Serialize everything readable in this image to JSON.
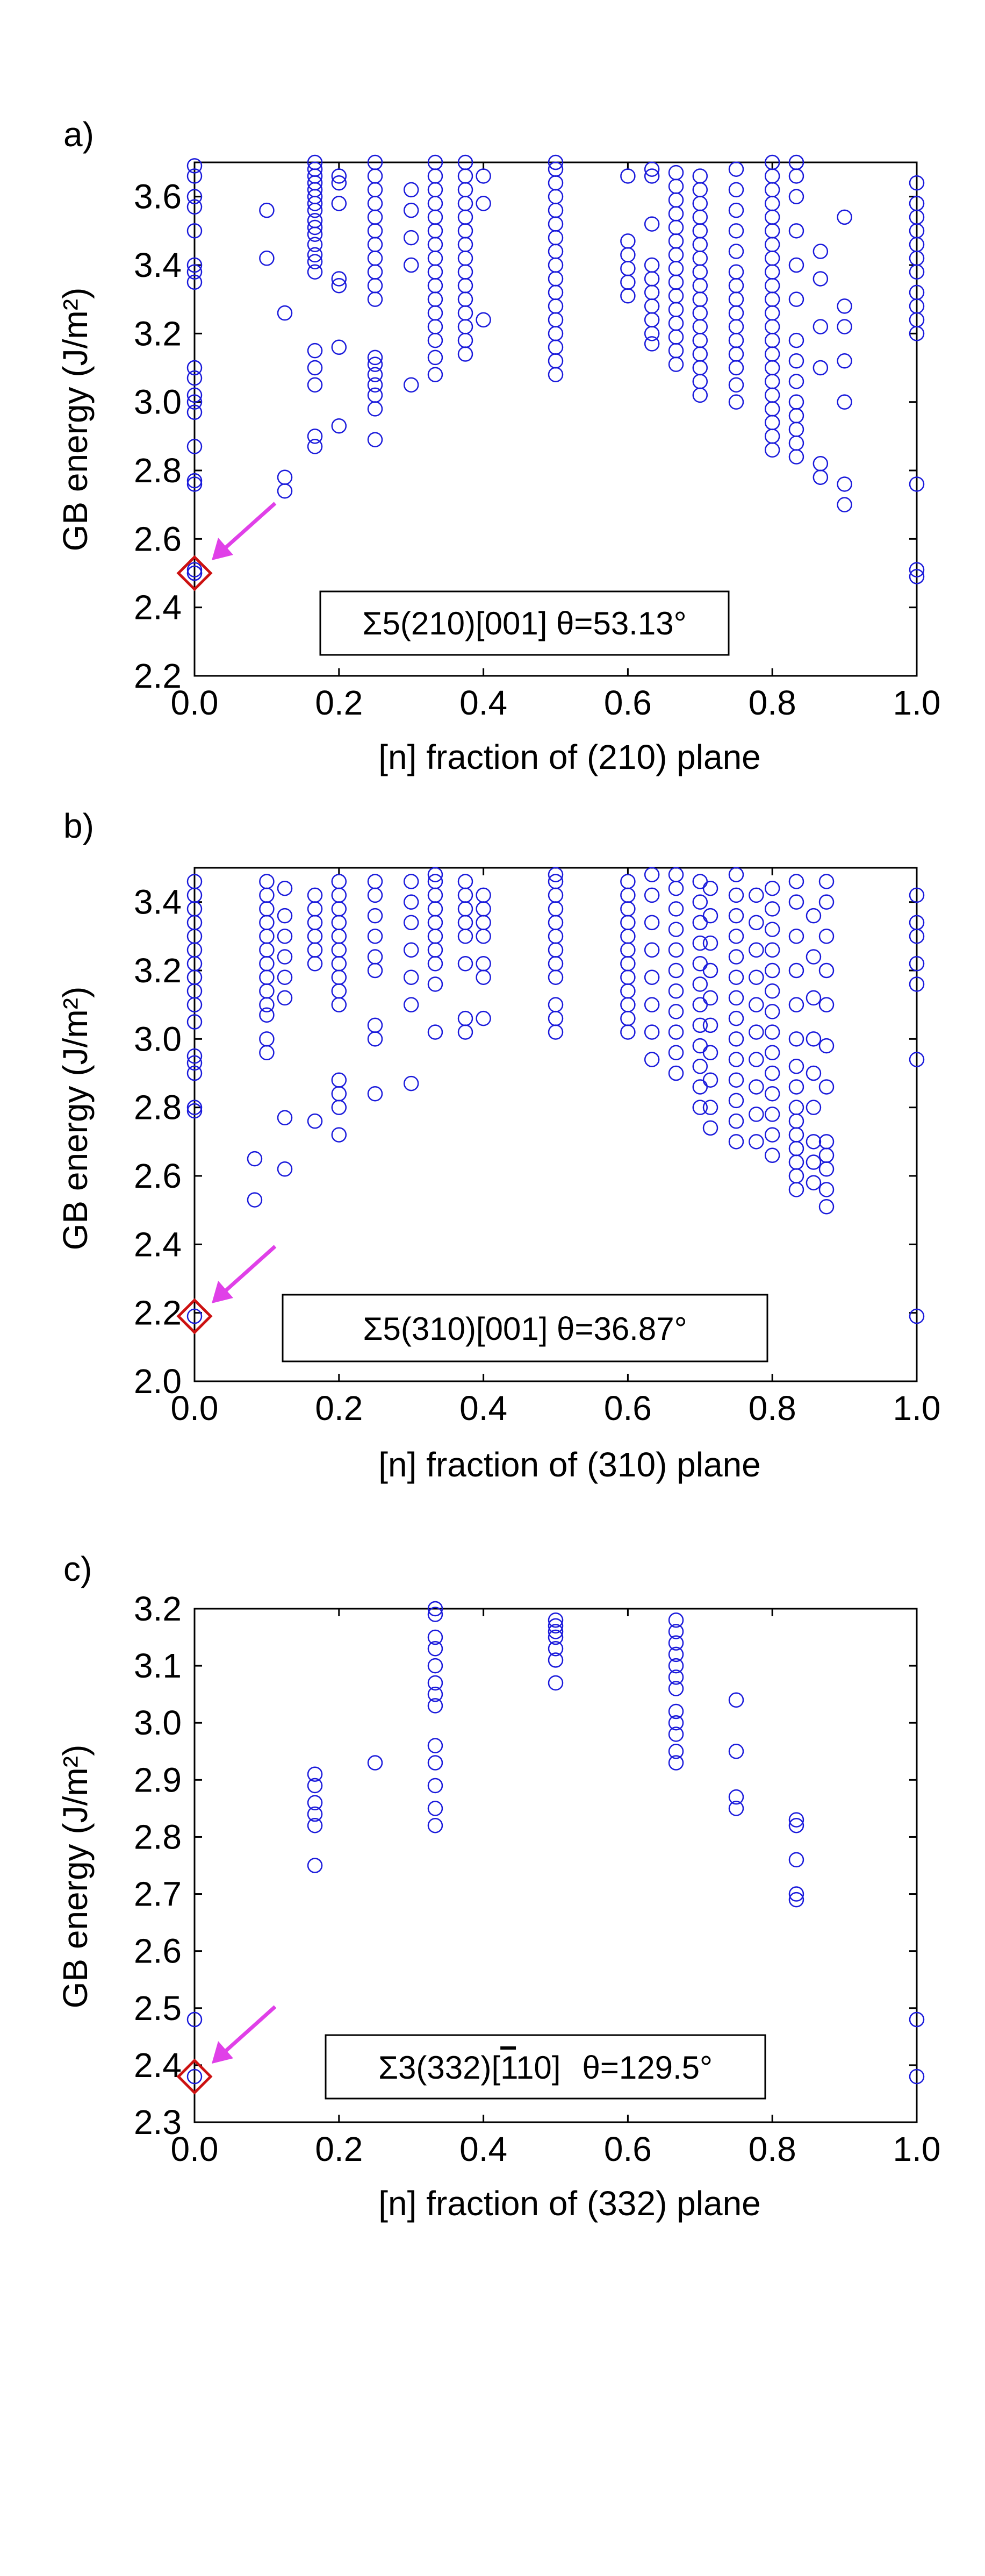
{
  "colors": {
    "marker": "#1a1adb",
    "highlight": "#cc1111",
    "arrow": "#e040e8",
    "axis": "#000000",
    "background": "#ffffff"
  },
  "chart_data": [
    {
      "type": "scatter",
      "panel_label": "a)",
      "xlabel": "[n] fraction of (210) plane",
      "ylabel": "GB energy (J/m²)",
      "xlim": [
        0.0,
        1.0
      ],
      "ylim": [
        2.2,
        3.7
      ],
      "xticks": [
        0.0,
        0.2,
        0.4,
        0.6,
        0.8,
        1.0
      ],
      "xtick_labels": [
        "0.0",
        "0.2",
        "0.4",
        "0.6",
        "0.8",
        "1.0"
      ],
      "yticks": [
        2.2,
        2.4,
        2.6,
        2.8,
        3.0,
        3.2,
        3.4,
        3.6
      ],
      "ytick_labels": [
        "2.2",
        "2.4",
        "2.6",
        "2.8",
        "3.0",
        "3.2",
        "3.4",
        "3.6"
      ],
      "annotation": "Σ5(210)[001]   θ=53.13°",
      "highlight": {
        "x": 0.0,
        "y": 2.5
      },
      "columns": [
        {
          "x": 0.0,
          "y": [
            2.5,
            2.5,
            2.51,
            2.76,
            2.77,
            2.87,
            2.97,
            3.0,
            3.02,
            3.07,
            3.1,
            3.35,
            3.38,
            3.4,
            3.5,
            3.57,
            3.6,
            3.66,
            3.69
          ]
        },
        {
          "x": 0.1,
          "y": [
            3.42,
            3.56
          ]
        },
        {
          "x": 0.125,
          "y": [
            2.74,
            2.78,
            3.26
          ]
        },
        {
          "x": 0.1667,
          "y": [
            2.87,
            2.9,
            3.05,
            3.1,
            3.15,
            3.38,
            3.41,
            3.43,
            3.46,
            3.49,
            3.51,
            3.53,
            3.56,
            3.58,
            3.6,
            3.62,
            3.64,
            3.66,
            3.68,
            3.7
          ]
        },
        {
          "x": 0.2,
          "y": [
            2.93,
            3.16,
            3.34,
            3.36,
            3.58,
            3.64,
            3.66
          ]
        },
        {
          "x": 0.25,
          "y": [
            2.89,
            2.98,
            3.02,
            3.05,
            3.08,
            3.11,
            3.13,
            3.3,
            3.34,
            3.38,
            3.42,
            3.46,
            3.5,
            3.54,
            3.58,
            3.62,
            3.66,
            3.7
          ]
        },
        {
          "x": 0.3,
          "y": [
            3.05,
            3.4,
            3.48,
            3.56,
            3.62
          ]
        },
        {
          "x": 0.3333,
          "y": [
            3.08,
            3.13,
            3.18,
            3.22,
            3.26,
            3.3,
            3.34,
            3.38,
            3.42,
            3.46,
            3.5,
            3.54,
            3.58,
            3.62,
            3.66,
            3.7
          ]
        },
        {
          "x": 0.375,
          "y": [
            3.14,
            3.18,
            3.22,
            3.26,
            3.3,
            3.34,
            3.38,
            3.42,
            3.46,
            3.5,
            3.54,
            3.58,
            3.62,
            3.66,
            3.7
          ]
        },
        {
          "x": 0.4,
          "y": [
            3.24,
            3.58,
            3.66
          ]
        },
        {
          "x": 0.5,
          "y": [
            3.08,
            3.12,
            3.16,
            3.2,
            3.24,
            3.28,
            3.32,
            3.36,
            3.4,
            3.44,
            3.48,
            3.52,
            3.56,
            3.6,
            3.64,
            3.68,
            3.7
          ]
        },
        {
          "x": 0.6,
          "y": [
            3.31,
            3.35,
            3.39,
            3.43,
            3.47,
            3.66
          ]
        },
        {
          "x": 0.6333,
          "y": [
            3.17,
            3.2,
            3.24,
            3.28,
            3.32,
            3.36,
            3.4,
            3.52,
            3.66,
            3.68
          ]
        },
        {
          "x": 0.6667,
          "y": [
            3.11,
            3.15,
            3.19,
            3.23,
            3.27,
            3.31,
            3.35,
            3.39,
            3.43,
            3.47,
            3.51,
            3.55,
            3.59,
            3.63,
            3.67
          ]
        },
        {
          "x": 0.7,
          "y": [
            3.02,
            3.06,
            3.1,
            3.14,
            3.18,
            3.22,
            3.26,
            3.3,
            3.34,
            3.38,
            3.42,
            3.46,
            3.5,
            3.54,
            3.58,
            3.62,
            3.66
          ]
        },
        {
          "x": 0.75,
          "y": [
            3.0,
            3.05,
            3.1,
            3.14,
            3.18,
            3.22,
            3.26,
            3.3,
            3.34,
            3.38,
            3.44,
            3.5,
            3.56,
            3.62,
            3.68
          ]
        },
        {
          "x": 0.8,
          "y": [
            2.86,
            2.9,
            2.94,
            2.98,
            3.02,
            3.06,
            3.1,
            3.14,
            3.18,
            3.22,
            3.26,
            3.3,
            3.34,
            3.38,
            3.42,
            3.46,
            3.5,
            3.54,
            3.58,
            3.62,
            3.66,
            3.7
          ]
        },
        {
          "x": 0.8333,
          "y": [
            2.84,
            2.88,
            2.92,
            2.96,
            3.0,
            3.06,
            3.12,
            3.18,
            3.3,
            3.4,
            3.5,
            3.6,
            3.66,
            3.7
          ]
        },
        {
          "x": 0.8667,
          "y": [
            2.78,
            2.82,
            3.1,
            3.22,
            3.36,
            3.44
          ]
        },
        {
          "x": 0.9,
          "y": [
            2.7,
            2.76,
            3.0,
            3.12,
            3.22,
            3.28,
            3.54
          ]
        },
        {
          "x": 1.0,
          "y": [
            2.49,
            2.51,
            2.76,
            3.2,
            3.24,
            3.28,
            3.32,
            3.38,
            3.42,
            3.46,
            3.5,
            3.54,
            3.58,
            3.64
          ]
        }
      ]
    },
    {
      "type": "scatter",
      "panel_label": "b)",
      "xlabel": "[n] fraction of (310) plane",
      "ylabel": "GB energy (J/m²)",
      "xlim": [
        0.0,
        1.0
      ],
      "ylim": [
        2.0,
        3.5
      ],
      "xticks": [
        0.0,
        0.2,
        0.4,
        0.6,
        0.8,
        1.0
      ],
      "xtick_labels": [
        "0.0",
        "0.2",
        "0.4",
        "0.6",
        "0.8",
        "1.0"
      ],
      "yticks": [
        2.0,
        2.2,
        2.4,
        2.6,
        2.8,
        3.0,
        3.2,
        3.4
      ],
      "ytick_labels": [
        "2.0",
        "2.2",
        "2.4",
        "2.6",
        "2.8",
        "3.0",
        "3.2",
        "3.4"
      ],
      "annotation": "Σ5(310)[001]   θ=36.87°",
      "highlight": {
        "x": 0.0,
        "y": 2.19
      },
      "columns": [
        {
          "x": 0.0,
          "y": [
            2.19,
            2.79,
            2.8,
            2.9,
            2.93,
            2.95,
            3.05,
            3.1,
            3.14,
            3.18,
            3.22,
            3.26,
            3.3,
            3.34,
            3.38,
            3.42,
            3.46
          ]
        },
        {
          "x": 0.0833,
          "y": [
            2.53,
            2.65
          ]
        },
        {
          "x": 0.1,
          "y": [
            2.96,
            3.0,
            3.07,
            3.1,
            3.14,
            3.18,
            3.22,
            3.26,
            3.3,
            3.34,
            3.38,
            3.42,
            3.46
          ]
        },
        {
          "x": 0.125,
          "y": [
            2.62,
            2.77,
            3.12,
            3.18,
            3.24,
            3.3,
            3.36,
            3.44
          ]
        },
        {
          "x": 0.1667,
          "y": [
            2.76,
            3.22,
            3.26,
            3.3,
            3.34,
            3.38,
            3.42
          ]
        },
        {
          "x": 0.2,
          "y": [
            2.72,
            2.8,
            2.84,
            2.88,
            3.1,
            3.14,
            3.18,
            3.22,
            3.26,
            3.3,
            3.34,
            3.38,
            3.42,
            3.46
          ]
        },
        {
          "x": 0.25,
          "y": [
            2.84,
            3.0,
            3.04,
            3.2,
            3.24,
            3.3,
            3.36,
            3.42,
            3.46
          ]
        },
        {
          "x": 0.3,
          "y": [
            2.87,
            3.1,
            3.18,
            3.26,
            3.34,
            3.4,
            3.46
          ]
        },
        {
          "x": 0.3333,
          "y": [
            3.02,
            3.16,
            3.22,
            3.26,
            3.3,
            3.34,
            3.38,
            3.42,
            3.46,
            3.48
          ]
        },
        {
          "x": 0.375,
          "y": [
            3.02,
            3.06,
            3.22,
            3.3,
            3.34,
            3.38,
            3.42,
            3.46
          ]
        },
        {
          "x": 0.4,
          "y": [
            3.06,
            3.18,
            3.22,
            3.3,
            3.34,
            3.38,
            3.42
          ]
        },
        {
          "x": 0.5,
          "y": [
            3.02,
            3.06,
            3.1,
            3.18,
            3.22,
            3.26,
            3.3,
            3.34,
            3.38,
            3.42,
            3.46,
            3.48
          ]
        },
        {
          "x": 0.6,
          "y": [
            3.02,
            3.06,
            3.1,
            3.14,
            3.18,
            3.22,
            3.26,
            3.3,
            3.34,
            3.38,
            3.42,
            3.46
          ]
        },
        {
          "x": 0.6333,
          "y": [
            2.94,
            3.02,
            3.1,
            3.18,
            3.26,
            3.34,
            3.42,
            3.48
          ]
        },
        {
          "x": 0.6667,
          "y": [
            2.9,
            2.96,
            3.02,
            3.08,
            3.14,
            3.2,
            3.26,
            3.32,
            3.38,
            3.44,
            3.48
          ]
        },
        {
          "x": 0.7,
          "y": [
            2.8,
            2.86,
            2.92,
            2.98,
            3.04,
            3.1,
            3.16,
            3.22,
            3.28,
            3.34,
            3.4,
            3.46
          ]
        },
        {
          "x": 0.7143,
          "y": [
            2.74,
            2.8,
            2.88,
            2.96,
            3.04,
            3.12,
            3.2,
            3.28,
            3.36,
            3.44
          ]
        },
        {
          "x": 0.75,
          "y": [
            2.7,
            2.76,
            2.82,
            2.88,
            2.94,
            3.0,
            3.06,
            3.12,
            3.18,
            3.24,
            3.3,
            3.36,
            3.42,
            3.48
          ]
        },
        {
          "x": 0.7778,
          "y": [
            2.7,
            2.78,
            2.86,
            2.94,
            3.02,
            3.1,
            3.18,
            3.26,
            3.34,
            3.42
          ]
        },
        {
          "x": 0.8,
          "y": [
            2.66,
            2.72,
            2.78,
            2.84,
            2.9,
            2.96,
            3.02,
            3.08,
            3.14,
            3.2,
            3.26,
            3.32,
            3.38,
            3.44
          ]
        },
        {
          "x": 0.8333,
          "y": [
            2.56,
            2.6,
            2.64,
            2.68,
            2.72,
            2.76,
            2.8,
            2.86,
            2.92,
            3.0,
            3.1,
            3.2,
            3.3,
            3.4,
            3.46
          ]
        },
        {
          "x": 0.8571,
          "y": [
            2.58,
            2.64,
            2.7,
            2.8,
            2.9,
            3.0,
            3.12,
            3.24,
            3.36
          ]
        },
        {
          "x": 0.875,
          "y": [
            2.51,
            2.56,
            2.62,
            2.66,
            2.7,
            2.86,
            2.98,
            3.1,
            3.2,
            3.3,
            3.4,
            3.46
          ]
        },
        {
          "x": 1.0,
          "y": [
            2.19,
            2.94,
            3.16,
            3.22,
            3.3,
            3.34,
            3.42
          ]
        }
      ]
    },
    {
      "type": "scatter",
      "panel_label": "c)",
      "xlabel": "[n] fraction of (332) plane",
      "ylabel": "GB energy (J/m²)",
      "xlim": [
        0.0,
        1.0
      ],
      "ylim": [
        2.3,
        3.2
      ],
      "xticks": [
        0.0,
        0.2,
        0.4,
        0.6,
        0.8,
        1.0
      ],
      "xtick_labels": [
        "0.0",
        "0.2",
        "0.4",
        "0.6",
        "0.8",
        "1.0"
      ],
      "yticks": [
        2.3,
        2.4,
        2.5,
        2.6,
        2.7,
        2.8,
        2.9,
        3.0,
        3.1,
        3.2
      ],
      "ytick_labels": [
        "2.3",
        "2.4",
        "2.5",
        "2.6",
        "2.7",
        "2.8",
        "2.9",
        "3.0",
        "3.1",
        "3.2"
      ],
      "annotation": "Σ3(332)[1̄10]   θ=129.5°",
      "annotation_overbar": "1",
      "annotation_prefix": "Σ3(332)[",
      "annotation_after_bar": "10]",
      "annotation_angle": "θ=129.5°",
      "highlight": {
        "x": 0.0,
        "y": 2.38
      },
      "columns": [
        {
          "x": 0.0,
          "y": [
            2.38,
            2.48
          ]
        },
        {
          "x": 0.1667,
          "y": [
            2.75,
            2.82,
            2.84,
            2.86,
            2.89,
            2.91
          ]
        },
        {
          "x": 0.25,
          "y": [
            2.93
          ]
        },
        {
          "x": 0.3333,
          "y": [
            2.82,
            2.85,
            2.89,
            2.93,
            2.96,
            3.03,
            3.05,
            3.07,
            3.1,
            3.13,
            3.15,
            3.19,
            3.2
          ]
        },
        {
          "x": 0.5,
          "y": [
            3.07,
            3.11,
            3.13,
            3.15,
            3.16,
            3.17,
            3.18
          ]
        },
        {
          "x": 0.6667,
          "y": [
            2.93,
            2.95,
            2.98,
            3.0,
            3.02,
            3.06,
            3.08,
            3.1,
            3.12,
            3.14,
            3.16,
            3.18
          ]
        },
        {
          "x": 0.75,
          "y": [
            2.85,
            2.87,
            2.95,
            3.04
          ]
        },
        {
          "x": 0.8333,
          "y": [
            2.69,
            2.7,
            2.76,
            2.82,
            2.83
          ]
        },
        {
          "x": 1.0,
          "y": [
            2.38,
            2.48
          ]
        }
      ]
    }
  ]
}
